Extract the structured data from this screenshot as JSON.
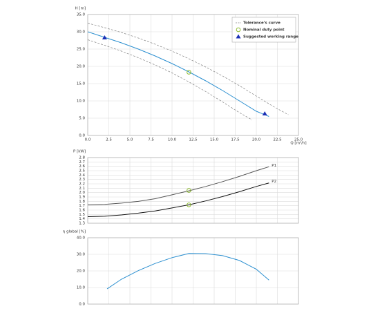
{
  "chart_data": [
    {
      "type": "line",
      "ylabel": "H [m]",
      "xlabel": "Q [m³/h]",
      "grid": true,
      "legend": "upper right",
      "xlim": [
        0,
        25
      ],
      "ylim": [
        0,
        35
      ],
      "xticks": [
        {
          "value": 0,
          "label": "0.0"
        },
        2.5,
        {
          "value": 5,
          "label": "5.0"
        },
        7.5,
        {
          "value": 10,
          "label": "10.0"
        },
        12.5,
        {
          "value": 15,
          "label": "15.0"
        },
        17.5,
        {
          "value": 20,
          "label": "20.0"
        },
        22.5,
        {
          "value": 25,
          "label": "25.0"
        }
      ],
      "yticks": [
        {
          "value": 0,
          "label": "0.0"
        },
        {
          "value": 5,
          "label": "5.0"
        },
        {
          "value": 10,
          "label": "10.0"
        },
        {
          "value": 15,
          "label": "15.0"
        },
        {
          "value": 20,
          "label": "20.0"
        },
        {
          "value": 25,
          "label": "25.0"
        },
        {
          "value": 30,
          "label": "30.0"
        },
        {
          "value": 35,
          "label": "35.0"
        }
      ],
      "series": [
        {
          "name": "Tolerance's curve",
          "color": "#808080",
          "dashed": true,
          "x": [
            0,
            2,
            4,
            6,
            8,
            10,
            12,
            14,
            16,
            18,
            20,
            22,
            23.8
          ],
          "values": [
            32.5,
            31.2,
            29.8,
            28.2,
            26.4,
            24.4,
            22.2,
            19.8,
            17.2,
            14.4,
            11.4,
            8.4,
            6
          ]
        },
        {
          "color": "#808080",
          "dashed": true,
          "x": [
            0,
            2,
            4,
            6,
            8,
            10,
            12,
            14,
            16,
            18,
            19.5
          ],
          "values": [
            27.7,
            26.1,
            24.4,
            22.5,
            20.4,
            18.1,
            15.5,
            12.7,
            9.7,
            6.6,
            4.5
          ]
        },
        {
          "color": "#2b8fd0",
          "x": [
            0,
            2,
            4,
            6,
            8,
            10,
            12,
            14,
            16,
            18,
            20,
            21.5
          ],
          "values": [
            30,
            28.4,
            26.8,
            25,
            23,
            20.8,
            18.4,
            15.8,
            13,
            10,
            7,
            5.5
          ]
        }
      ],
      "points": [
        {
          "name": "Nominal duty point",
          "shape": "circle",
          "color": "#8dbb2e",
          "x": [
            12
          ],
          "values": [
            18.3
          ]
        },
        {
          "name": "Suggested working range",
          "shape": "triangle",
          "color": "#1a2fb5",
          "x": [
            2,
            21
          ],
          "values": [
            28.3,
            6.3
          ]
        }
      ]
    },
    {
      "type": "line",
      "ylabel": "P [kW]",
      "grid": true,
      "xtick_labels": false,
      "series_labels_at_end": true,
      "xlim": [
        0,
        25
      ],
      "ylim": [
        1.3,
        2.8
      ],
      "xticks": [
        0,
        2.5,
        5,
        7.5,
        10,
        12.5,
        15,
        17.5,
        20,
        22.5,
        25
      ],
      "yticks": [
        1.3,
        1.4,
        1.5,
        1.6,
        1.7,
        1.8,
        1.9,
        {
          "value": 2,
          "label": "2.0"
        },
        2.1,
        2.2,
        2.3,
        2.4,
        2.5,
        2.6,
        2.7,
        2.8
      ],
      "series": [
        {
          "name": "P1",
          "color": "#555555",
          "x": [
            0,
            2,
            4,
            6,
            8,
            10,
            12,
            14,
            16,
            18,
            20,
            21.5
          ],
          "values": [
            1.72,
            1.73,
            1.76,
            1.8,
            1.86,
            1.95,
            2.04,
            2.14,
            2.25,
            2.37,
            2.5,
            2.59
          ]
        },
        {
          "name": "P2",
          "color": "#111111",
          "x": [
            0,
            2,
            4,
            6,
            8,
            10,
            12,
            14,
            16,
            18,
            20,
            21.5
          ],
          "values": [
            1.45,
            1.46,
            1.49,
            1.53,
            1.58,
            1.65,
            1.72,
            1.81,
            1.91,
            2.02,
            2.14,
            2.22
          ]
        }
      ],
      "points": [
        {
          "shape": "circle",
          "color": "#8dbb2e",
          "x": [
            12,
            12
          ],
          "values": [
            2.05,
            1.72
          ]
        }
      ]
    },
    {
      "type": "line",
      "ylabel": "η global [%]",
      "grid": true,
      "xtick_labels": false,
      "xlim": [
        0,
        25
      ],
      "ylim": [
        0,
        40
      ],
      "xticks": [
        0,
        2.5,
        5,
        7.5,
        10,
        12.5,
        15,
        17.5,
        20,
        22.5,
        25
      ],
      "yticks": [
        {
          "value": 0,
          "label": "0.0"
        },
        {
          "value": 10,
          "label": "10.0"
        },
        {
          "value": 20,
          "label": "20.0"
        },
        {
          "value": 30,
          "label": "30.0"
        },
        {
          "value": 40,
          "label": "40.0"
        }
      ],
      "series": [
        {
          "color": "#2b8fd0",
          "x": [
            2.3,
            4,
            6,
            8,
            10,
            12,
            14,
            16,
            18,
            20,
            21.5
          ],
          "values": [
            9.2,
            15,
            20.2,
            24.5,
            28,
            30.5,
            30.4,
            29.2,
            26.3,
            21,
            14.5
          ]
        }
      ]
    }
  ]
}
